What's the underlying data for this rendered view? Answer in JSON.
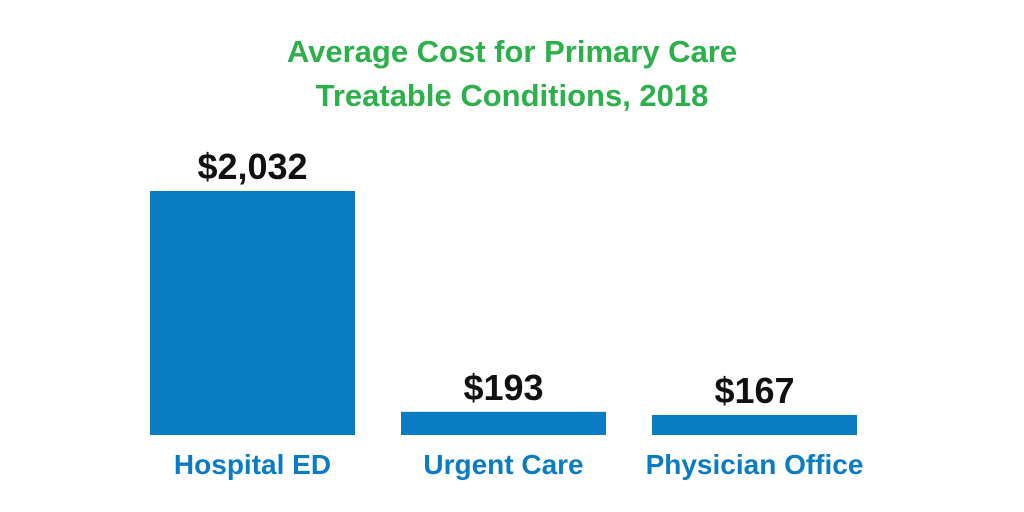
{
  "chart_data": {
    "type": "bar",
    "title_lines": [
      "Average Cost for Primary Care",
      "Treatable Conditions, 2018"
    ],
    "categories": [
      "Hospital ED",
      "Urgent Care",
      "Physician Office"
    ],
    "values": [
      2032,
      193,
      167
    ],
    "value_labels": [
      "$2,032",
      "$193",
      "$167"
    ],
    "ylim": [
      0,
      2032
    ],
    "grid": false,
    "legend": "none"
  },
  "colors": {
    "title": "#2bb04a",
    "bar": "#0a7cc4",
    "category_label": "#0a7cc4",
    "value_label": "#111111"
  }
}
